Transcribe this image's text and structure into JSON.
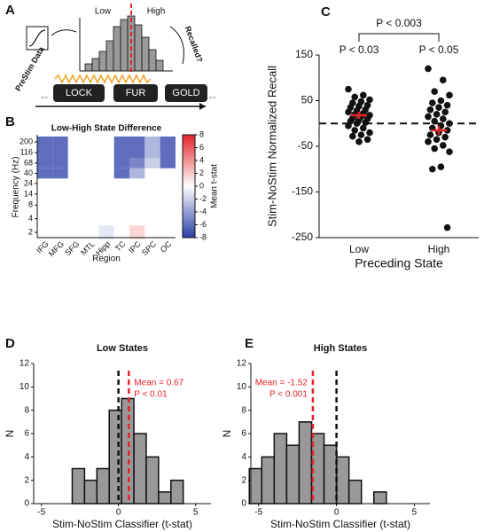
{
  "panel_labels": [
    "A",
    "B",
    "C",
    "D",
    "E"
  ],
  "diagram": {
    "low": "Low",
    "high": "High",
    "prestim": "PreStim Data",
    "recalled": "Recalled?",
    "words": [
      "LOCK",
      "FUR",
      "GOLD"
    ],
    "ellipsis": "..."
  },
  "chart_data": [
    {
      "type": "heatmap",
      "title": "Low-High State Difference",
      "x_label": "Region",
      "y_label": "Frequency (Hz)",
      "categories": [
        "IFG",
        "MFG",
        "SFG",
        "MTL",
        "Hipp",
        "TC",
        "IPC",
        "SPC",
        "OC"
      ],
      "y": [
        2,
        4,
        8,
        14,
        24,
        40,
        68,
        116,
        200
      ],
      "log_y": true,
      "ylim": [
        2,
        200
      ],
      "yticks": [
        2,
        4,
        8,
        14,
        24,
        40,
        68,
        116,
        200
      ],
      "z": [
        [
          null,
          null,
          null,
          null,
          -1,
          null,
          1.5,
          null,
          null
        ],
        [
          null,
          null,
          null,
          null,
          null,
          null,
          null,
          null,
          null
        ],
        [
          null,
          null,
          null,
          null,
          null,
          null,
          null,
          null,
          null
        ],
        [
          null,
          null,
          null,
          null,
          null,
          null,
          null,
          null,
          null
        ],
        [
          null,
          null,
          null,
          null,
          null,
          null,
          null,
          null,
          null
        ],
        [
          -6,
          -6,
          null,
          null,
          null,
          -6,
          -3,
          null,
          null
        ],
        [
          -6,
          -6,
          null,
          null,
          null,
          -6,
          -5,
          -2,
          -6
        ],
        [
          -6,
          -6,
          null,
          null,
          null,
          -6,
          -6,
          -3,
          -6
        ],
        [
          -6,
          -6,
          null,
          null,
          null,
          -6,
          -6,
          -3,
          -6
        ]
      ],
      "colorbar": {
        "label": "Mean t-stat",
        "clim": [
          -8,
          8
        ],
        "ticks": [
          8,
          6,
          4,
          2,
          0,
          -2,
          -4,
          -6,
          -8
        ],
        "low_color": "#2a3ea6",
        "mid_color": "#ffffff",
        "high_color": "#e3232b"
      }
    },
    {
      "type": "strip",
      "x_label": "Preceding State",
      "y_label": "Stim-NoStim Normalized Recall",
      "categories": [
        "Low",
        "High"
      ],
      "ylim": [
        -250,
        150
      ],
      "yticks": [
        150,
        50,
        -50,
        -150,
        -250
      ],
      "reference_line": 0,
      "point_color": "#111111",
      "mean_color": "#e3232b",
      "groups": [
        {
          "values": [
            75,
            62,
            58,
            52,
            48,
            45,
            40,
            38,
            35,
            30,
            28,
            25,
            22,
            20,
            18,
            15,
            12,
            10,
            8,
            5,
            2,
            0,
            -5,
            -10,
            -15,
            -20,
            -25,
            -28,
            -35,
            -40
          ]
        },
        {
          "values": [
            120,
            95,
            70,
            62,
            50,
            45,
            40,
            35,
            30,
            25,
            20,
            15,
            10,
            5,
            0,
            -5,
            -10,
            -15,
            -20,
            -25,
            -30,
            -35,
            -40,
            -48,
            -55,
            -62,
            -95,
            -100,
            -228
          ]
        }
      ],
      "means": [
        18,
        -15
      ],
      "errors": [
        8,
        10
      ],
      "annotations": [
        "P < 0.03",
        "P < 0.05",
        "P < 0.003"
      ]
    },
    {
      "type": "histogram",
      "title": "Low States",
      "x_label": "Stim-NoStim Classifier (t-stat)",
      "y_label": "N",
      "bins": [
        -3,
        -2.2,
        -1.4,
        -0.6,
        0.2,
        1,
        1.8,
        2.6,
        3.4,
        4.2
      ],
      "counts": [
        3,
        2,
        3,
        8,
        9,
        6,
        4,
        1,
        2
      ],
      "color": "#999999",
      "xlim": [
        -5.5,
        6
      ],
      "xticks": [
        -5,
        0,
        5
      ],
      "ylim": [
        0,
        12
      ],
      "yticks": [
        0,
        2,
        4,
        6,
        8,
        10,
        12
      ],
      "zero_line": 0,
      "mean_line": {
        "value": 0.67,
        "label": "Mean = 0.67"
      },
      "p_label": "P < 0.01",
      "mean_color": "#e3232b",
      "annotation_side": "right"
    },
    {
      "type": "histogram",
      "title": "High States",
      "x_label": "Stim-NoStim Classifier (t-stat)",
      "y_label": "N",
      "bins": [
        -5.6,
        -4.8,
        -4,
        -3.2,
        -2.4,
        -1.6,
        -0.8,
        0,
        0.8,
        1.6,
        2.4,
        3.2
      ],
      "counts": [
        3,
        4,
        6,
        5,
        7,
        6,
        5,
        4,
        2,
        0,
        1
      ],
      "color": "#999999",
      "xlim": [
        -5.5,
        6
      ],
      "xticks": [
        -5,
        0,
        5
      ],
      "ylim": [
        0,
        12
      ],
      "yticks": [
        0,
        2,
        4,
        6,
        8,
        10,
        12
      ],
      "zero_line": 0,
      "mean_line": {
        "value": -1.52,
        "label": "Mean = -1.52"
      },
      "p_label": "P < 0.001",
      "mean_color": "#e3232b",
      "annotation_side": "left"
    }
  ]
}
